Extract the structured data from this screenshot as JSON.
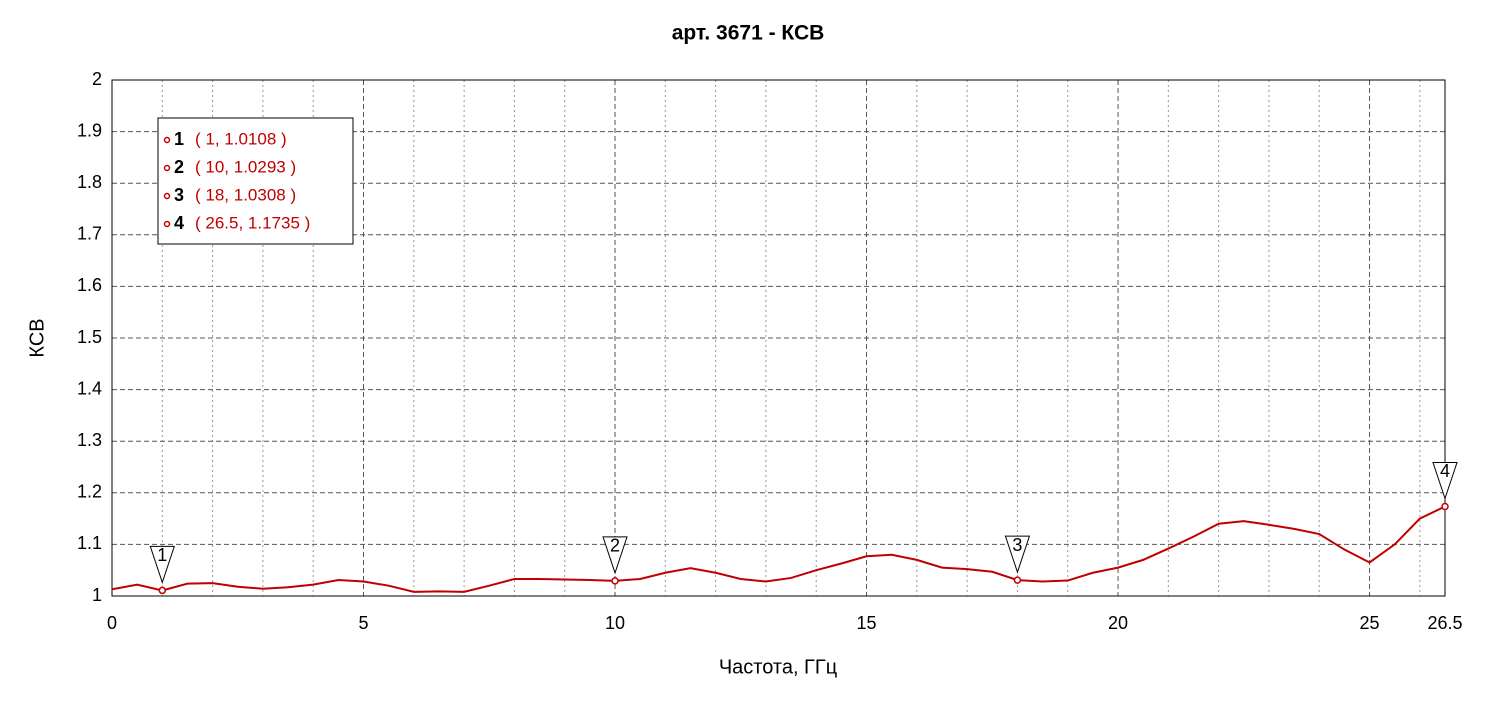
{
  "chart_data": {
    "type": "line",
    "title": "арт. 3671 - КСВ",
    "x_label": "Частота, ГГц",
    "y_label": "КСВ",
    "color": "#c00000",
    "x": [
      0,
      0.5,
      1,
      1.5,
      2,
      2.5,
      3,
      3.5,
      4,
      4.5,
      5,
      5.5,
      6,
      6.5,
      7,
      7.5,
      8,
      8.5,
      9,
      9.5,
      10,
      10.5,
      11,
      11.5,
      12,
      12.5,
      13,
      13.5,
      14,
      14.5,
      15,
      15.5,
      16,
      16.5,
      17,
      17.5,
      18,
      18.5,
      19,
      19.5,
      20,
      20.5,
      21,
      21.5,
      22,
      22.5,
      23,
      23.5,
      24,
      24.5,
      25,
      25.5,
      26,
      26.5
    ],
    "values": [
      1.013,
      1.022,
      1.0108,
      1.024,
      1.025,
      1.018,
      1.014,
      1.017,
      1.022,
      1.031,
      1.028,
      1.02,
      1.008,
      1.009,
      1.008,
      1.02,
      1.033,
      1.033,
      1.032,
      1.031,
      1.0293,
      1.033,
      1.045,
      1.054,
      1.045,
      1.033,
      1.028,
      1.035,
      1.05,
      1.063,
      1.077,
      1.08,
      1.07,
      1.055,
      1.052,
      1.047,
      1.0308,
      1.028,
      1.03,
      1.045,
      1.055,
      1.07,
      1.092,
      1.115,
      1.14,
      1.145,
      1.138,
      1.13,
      1.12,
      1.09,
      1.065,
      1.1,
      1.15,
      1.1735
    ],
    "xlim": [
      0,
      26.5
    ],
    "ylim": [
      1,
      2
    ],
    "xticks": [
      0,
      5,
      10,
      15,
      20,
      25,
      26.5
    ],
    "xminorticks": [
      1,
      2,
      3,
      4,
      6,
      7,
      8,
      9,
      11,
      12,
      13,
      14,
      16,
      17,
      18,
      19,
      21,
      22,
      23,
      24,
      26
    ],
    "yticks": [
      1,
      1.1,
      1.2,
      1.3,
      1.4,
      1.5,
      1.6,
      1.7,
      1.8,
      1.9,
      2
    ],
    "grid": true,
    "markers": [
      {
        "label": "1",
        "x": 1,
        "value": 1.0108,
        "text": "( 1, 1.0108 )"
      },
      {
        "label": "2",
        "x": 10,
        "value": 1.0293,
        "text": "( 10, 1.0293 )"
      },
      {
        "label": "3",
        "x": 18,
        "value": 1.0308,
        "text": "( 18, 1.0308 )"
      },
      {
        "label": "4",
        "x": 26.5,
        "value": 1.1735,
        "text": "( 26.5, 1.1735 )"
      }
    ]
  }
}
